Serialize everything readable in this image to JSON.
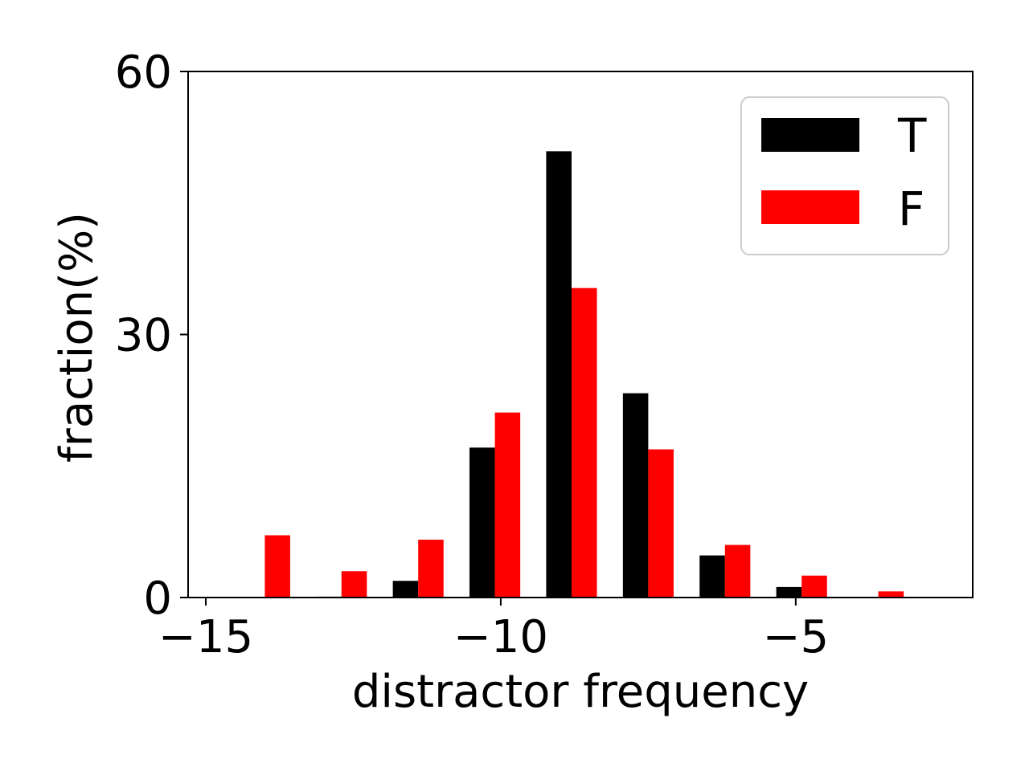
{
  "chart_data": {
    "type": "bar",
    "title": "",
    "xlabel": "distractor frequency",
    "ylabel": "fraction(%)",
    "xlim": [
      -15.3,
      -2.0
    ],
    "ylim": [
      0,
      60
    ],
    "x_ticks": [
      {
        "value": -15,
        "label": "−15"
      },
      {
        "value": -10,
        "label": "−10"
      },
      {
        "value": -5,
        "label": "−5"
      }
    ],
    "y_ticks": [
      {
        "value": 0,
        "label": "0"
      },
      {
        "value": 30,
        "label": "30"
      },
      {
        "value": 60,
        "label": "60"
      }
    ],
    "bin_centers": [
      -14.0,
      -12.7,
      -11.4,
      -10.1,
      -8.8,
      -7.5,
      -6.2,
      -4.9,
      -3.6
    ],
    "bar_width": 0.43,
    "grid": false,
    "legend_position": "top-right",
    "series": [
      {
        "name": "T",
        "color": "#000000",
        "values": [
          0.0,
          0.1,
          1.9,
          17.1,
          50.9,
          23.3,
          4.8,
          1.2,
          0.0
        ]
      },
      {
        "name": "F",
        "color": "#ff0000",
        "values": [
          7.1,
          3.0,
          6.6,
          21.1,
          35.3,
          16.9,
          6.0,
          2.5,
          0.7
        ]
      }
    ]
  }
}
